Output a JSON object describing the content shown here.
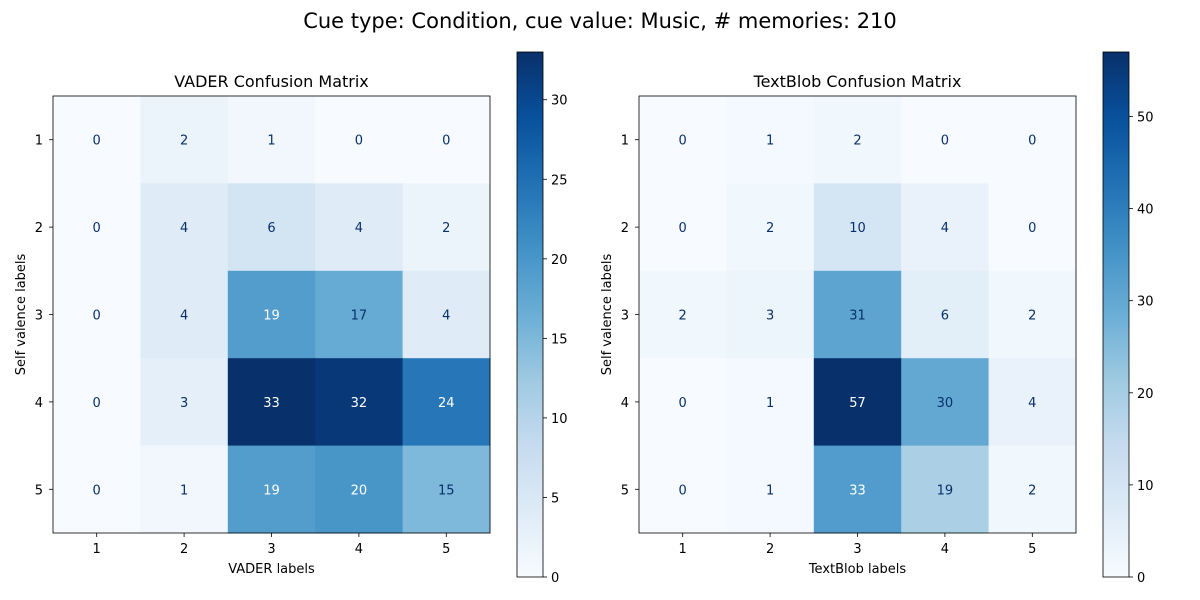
{
  "figure": {
    "suptitle": "Cue type: Condition, cue value: Music, # memories: 210"
  },
  "chart_data": [
    {
      "type": "heatmap",
      "title": "VADER Confusion Matrix",
      "xlabel": "VADER labels",
      "ylabel": "Self valence labels",
      "x_categories": [
        "1",
        "2",
        "3",
        "4",
        "5"
      ],
      "y_categories": [
        "1",
        "2",
        "3",
        "4",
        "5"
      ],
      "values": [
        [
          0,
          2,
          1,
          0,
          0
        ],
        [
          0,
          4,
          6,
          4,
          2
        ],
        [
          0,
          4,
          19,
          17,
          4
        ],
        [
          0,
          3,
          33,
          32,
          24
        ],
        [
          0,
          1,
          19,
          20,
          15
        ]
      ],
      "colormap": "Blues",
      "vmin": 0,
      "vmax": 33,
      "colorbar_ticks": [
        0,
        5,
        10,
        15,
        20,
        25,
        30
      ]
    },
    {
      "type": "heatmap",
      "title": "TextBlob Confusion Matrix",
      "xlabel": "TextBlob labels",
      "ylabel": "Self valence labels",
      "x_categories": [
        "1",
        "2",
        "3",
        "4",
        "5"
      ],
      "y_categories": [
        "1",
        "2",
        "3",
        "4",
        "5"
      ],
      "values": [
        [
          0,
          1,
          2,
          0,
          0
        ],
        [
          0,
          2,
          10,
          4,
          0
        ],
        [
          2,
          3,
          31,
          6,
          2
        ],
        [
          0,
          1,
          57,
          30,
          4
        ],
        [
          0,
          1,
          33,
          19,
          2
        ]
      ],
      "colormap": "Blues",
      "vmin": 0,
      "vmax": 57,
      "colorbar_ticks": [
        0,
        10,
        20,
        30,
        40,
        50
      ]
    }
  ]
}
